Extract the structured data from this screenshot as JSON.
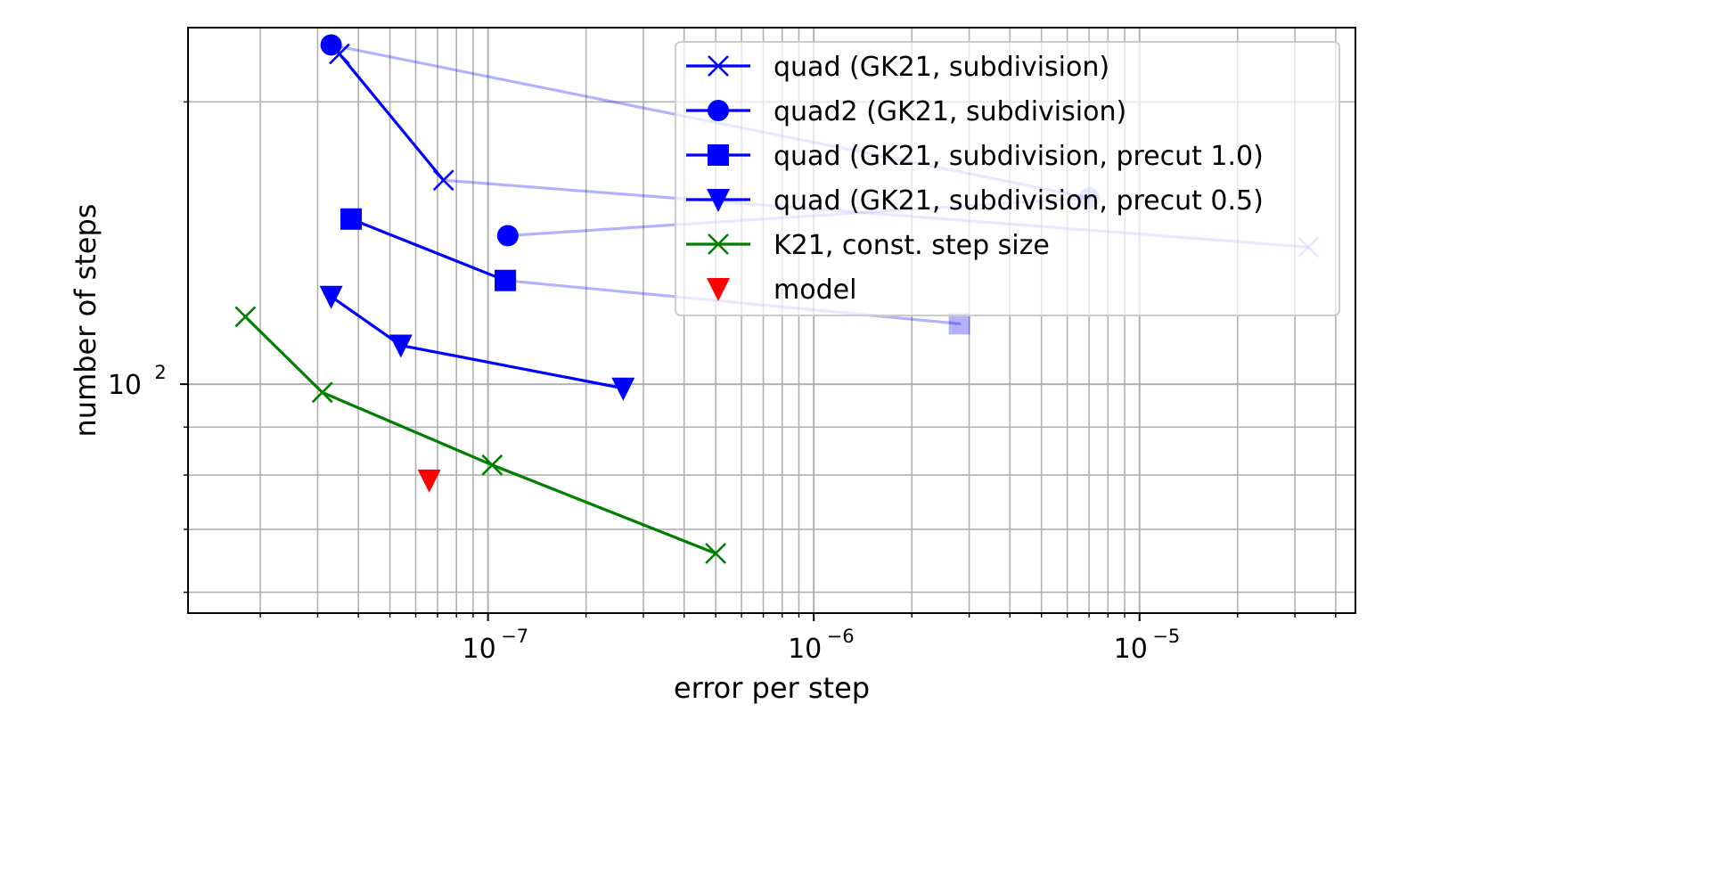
{
  "chart_data": {
    "type": "line",
    "title": "",
    "xlabel": "error per step",
    "ylabel": "number of steps",
    "xscale": "log",
    "yscale": "log",
    "xlim": [
      1.2e-08,
      4.6e-05
    ],
    "ylim": [
      57,
      240
    ],
    "xticks_major": [
      {
        "value": 1e-07,
        "base": "10",
        "exp": "−7"
      },
      {
        "value": 1e-06,
        "base": "10",
        "exp": "−6"
      },
      {
        "value": 1e-05,
        "base": "10",
        "exp": "−5"
      }
    ],
    "yticks_major": [
      {
        "value": 100,
        "base": "10",
        "exp": "2"
      }
    ],
    "grid": "both (major and minor)",
    "legend_position": "upper right",
    "series": [
      {
        "name": "quad (GK21, subdivision)",
        "color": "#0000ff",
        "marker": "x",
        "points": [
          [
            3.5e-08,
            225
          ],
          [
            7.3e-08,
            165
          ],
          [
            3.3e-05,
            140
          ]
        ],
        "faded_points": [
          2
        ]
      },
      {
        "name": "quad2 (GK21, subdivision)",
        "color": "#0000ff",
        "marker": "circle",
        "points": [
          [
            3.3e-08,
            230
          ],
          [
            7e-06,
            158
          ],
          [
            1.15e-07,
            144
          ]
        ],
        "faded_points": [
          1
        ]
      },
      {
        "name": "quad (GK21, subdivision, precut 1.0)",
        "color": "#0000ff",
        "marker": "square",
        "points": [
          [
            3.8e-08,
            150
          ],
          [
            1.13e-07,
            129
          ],
          [
            2.8e-06,
            116
          ]
        ],
        "faded_points": [
          2
        ]
      },
      {
        "name": "quad (GK21, subdivision, precut 0.5)",
        "color": "#0000ff",
        "marker": "triangle-down",
        "points": [
          [
            3.3e-08,
            124
          ],
          [
            5.4e-08,
            110
          ],
          [
            2.6e-07,
            99
          ]
        ],
        "faded_points": []
      },
      {
        "name": "K21, const. step size",
        "color": "#008000",
        "marker": "x",
        "points": [
          [
            1.8e-08,
            118
          ],
          [
            3.1e-08,
            98
          ],
          [
            1.03e-07,
            82
          ],
          [
            5e-07,
            66
          ]
        ],
        "faded_points": []
      },
      {
        "name": "model",
        "color": "#ff0000",
        "marker": "triangle-down",
        "linestyle": "none",
        "points": [
          [
            6.6e-08,
            79
          ]
        ],
        "faded_points": []
      }
    ]
  }
}
